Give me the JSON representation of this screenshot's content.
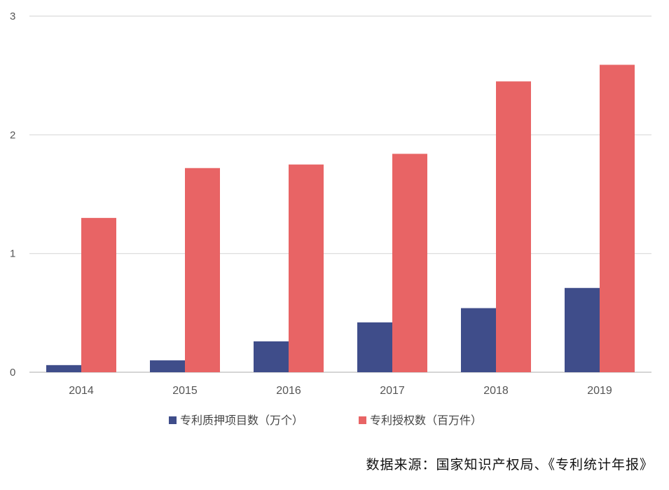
{
  "chart_data": {
    "type": "bar",
    "categories": [
      "2014",
      "2015",
      "2016",
      "2017",
      "2018",
      "2019"
    ],
    "series": [
      {
        "name": "专利质押项目数（万个）",
        "values": [
          0.06,
          0.1,
          0.26,
          0.42,
          0.54,
          0.71
        ],
        "color": "#3f4d8a"
      },
      {
        "name": "专利授权数（百万件）",
        "values": [
          1.3,
          1.72,
          1.75,
          1.84,
          2.45,
          2.59
        ],
        "color": "#e86465"
      }
    ],
    "yticks": [
      "0",
      "1",
      "2",
      "3"
    ],
    "ylim": [
      0,
      3
    ],
    "grid": true,
    "legend_position": "bottom"
  },
  "source_note": "数据来源：国家知识产权局、《专利统计年报》"
}
